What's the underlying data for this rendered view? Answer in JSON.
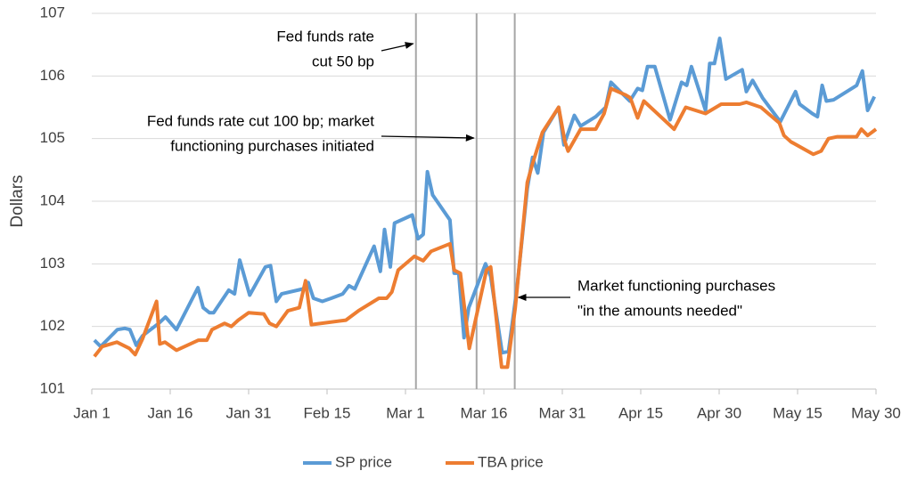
{
  "chart_data": {
    "type": "line",
    "ylabel": "Dollars",
    "xlim": [
      0,
      150
    ],
    "xticks": [
      {
        "value": 0,
        "label": "Jan 1"
      },
      {
        "value": 15,
        "label": "Jan 16"
      },
      {
        "value": 30,
        "label": "Jan 31"
      },
      {
        "value": 45,
        "label": "Feb 15"
      },
      {
        "value": 60,
        "label": "Mar 1"
      },
      {
        "value": 75,
        "label": "Mar 16"
      },
      {
        "value": 90,
        "label": "Mar 31"
      },
      {
        "value": 105,
        "label": "Apr 15"
      },
      {
        "value": 120,
        "label": "Apr 30"
      },
      {
        "value": 135,
        "label": "May 15"
      },
      {
        "value": 150,
        "label": "May 30"
      }
    ],
    "ylim": [
      101,
      107
    ],
    "yticks": [
      101,
      102,
      103,
      104,
      105,
      106,
      107
    ],
    "grid": true,
    "legend": "bottom",
    "series": [
      {
        "name": "SP price",
        "color": "#5b9bd5",
        "x": [
          0.5,
          1.7,
          4.9,
          6.3,
          7.3,
          8.5,
          9.7,
          12.8,
          14.1,
          16.2,
          20.3,
          21.3,
          22.5,
          23.3,
          26.2,
          27.3,
          28.3,
          30.2,
          33.2,
          34.2,
          35.3,
          36.3,
          40.4,
          41.4,
          42.4,
          44.1,
          45.8,
          48,
          49.2,
          50.3,
          54,
          55.2,
          56,
          57.1,
          57.9,
          61.3,
          62.4,
          63.4,
          64.2,
          65.2,
          68.5,
          69.3,
          70.2,
          71.2,
          72.1,
          75.3,
          76.3,
          78.5,
          79.7,
          81.3,
          83.3,
          84.3,
          85.3,
          86.4,
          89.3,
          90.3,
          92.3,
          93.5,
          96.4,
          98.3,
          99.3,
          102.9,
          104.4,
          105.3,
          106.3,
          107.7,
          110.6,
          112.8,
          113.8,
          114.7,
          117.4,
          118.2,
          119.1,
          120.1,
          121.3,
          124.4,
          125.2,
          126.4,
          128.3,
          131.7,
          134.6,
          135.4,
          137.8,
          138.8,
          139.7,
          140.5,
          141.9,
          146.3,
          147.4,
          148.4,
          149.7
        ],
        "values": [
          101.78,
          101.68,
          101.95,
          101.97,
          101.95,
          101.7,
          101.85,
          102.05,
          102.15,
          101.95,
          102.62,
          102.3,
          102.22,
          102.22,
          102.58,
          102.52,
          103.06,
          102.5,
          102.95,
          102.97,
          102.4,
          102.52,
          102.6,
          102.7,
          102.45,
          102.4,
          102.45,
          102.52,
          102.65,
          102.6,
          103.28,
          102.88,
          103.55,
          102.95,
          103.65,
          103.78,
          103.4,
          103.47,
          104.47,
          104.1,
          103.7,
          102.85,
          102.85,
          101.82,
          102.3,
          103.0,
          102.8,
          101.58,
          101.6,
          102.6,
          104.2,
          104.7,
          104.45,
          105.1,
          105.5,
          104.9,
          105.37,
          105.2,
          105.35,
          105.5,
          105.9,
          105.6,
          105.8,
          105.77,
          106.15,
          106.15,
          105.3,
          105.9,
          105.85,
          106.15,
          105.45,
          106.2,
          106.2,
          106.6,
          105.95,
          106.1,
          105.75,
          105.93,
          105.65,
          105.27,
          105.75,
          105.55,
          105.4,
          105.35,
          105.85,
          105.6,
          105.62,
          105.85,
          106.08,
          105.45,
          105.67
        ]
      },
      {
        "name": "TBA price",
        "color": "#ed7d31",
        "x": [
          0.5,
          2,
          4.8,
          7.2,
          8.3,
          9.7,
          12.4,
          13,
          14,
          16.2,
          20.4,
          22,
          23,
          25.4,
          26.7,
          28,
          30,
          32.9,
          34,
          35.3,
          37.5,
          39.7,
          40.9,
          42,
          48.6,
          51,
          54.9,
          56.4,
          57.4,
          58.6,
          61.7,
          63.4,
          64.9,
          68.5,
          69.3,
          70.5,
          72.2,
          75.5,
          76.3,
          78.4,
          79.5,
          81,
          83.3,
          84.3,
          86.2,
          89.3,
          90.5,
          91.1,
          93.5,
          96.4,
          98,
          99.3,
          102,
          103,
          104.4,
          105.6,
          111.4,
          113.6,
          117.4,
          120.4,
          123.9,
          125.2,
          128,
          131.5,
          132.4,
          133.7,
          138,
          139.5,
          140.9,
          142.6,
          146.3,
          147.2,
          148.4,
          150
        ],
        "values": [
          101.52,
          101.68,
          101.75,
          101.65,
          101.55,
          101.8,
          102.4,
          101.72,
          101.75,
          101.62,
          101.78,
          101.78,
          101.95,
          102.05,
          102.0,
          102.1,
          102.22,
          102.2,
          102.05,
          102.0,
          102.25,
          102.3,
          102.73,
          102.03,
          102.1,
          102.25,
          102.45,
          102.45,
          102.55,
          102.9,
          103.12,
          103.05,
          103.2,
          103.32,
          102.9,
          102.85,
          101.65,
          102.9,
          102.95,
          101.35,
          101.35,
          102.3,
          104.3,
          104.6,
          105.1,
          105.5,
          104.95,
          104.8,
          105.15,
          105.15,
          105.4,
          105.8,
          105.7,
          105.65,
          105.33,
          105.6,
          105.15,
          105.5,
          105.4,
          105.55,
          105.55,
          105.58,
          105.5,
          105.25,
          105.05,
          104.95,
          104.75,
          104.8,
          105.0,
          105.03,
          105.03,
          105.15,
          105.05,
          105.15
        ]
      }
    ],
    "annotations": [
      {
        "x": 62,
        "text": [
          "Fed funds rate",
          "cut 50 bp"
        ]
      },
      {
        "x": 73.6,
        "text": [
          "Fed funds rate cut 100 bp; market",
          "functioning purchases initiated"
        ]
      },
      {
        "x": 80.9,
        "text": [
          "Market functioning purchases",
          "\"in the amounts needed\""
        ]
      }
    ]
  }
}
